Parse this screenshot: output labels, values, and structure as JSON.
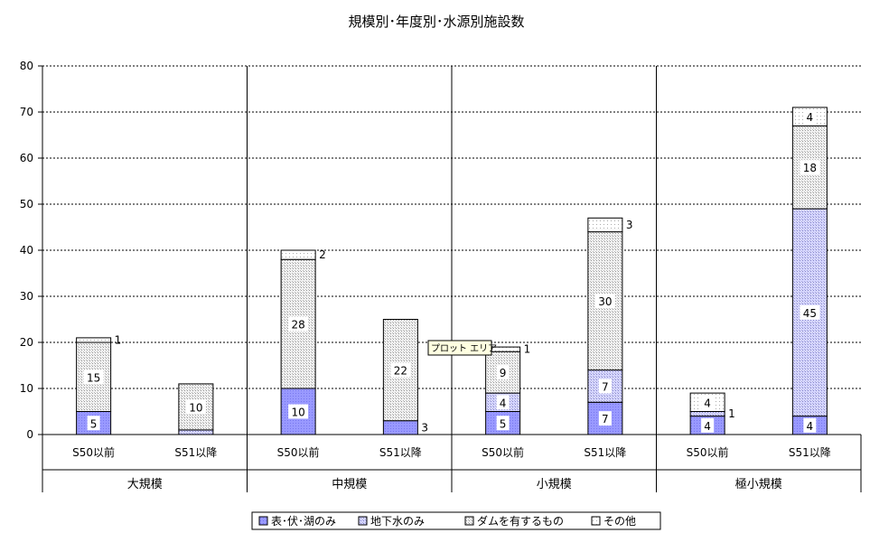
{
  "chart_data": {
    "type": "bar",
    "stacked": true,
    "title": "規模別･年度別･水源別施設数",
    "xlabel": "",
    "ylabel": "",
    "ylim": [
      0,
      80
    ],
    "yticks": [
      0,
      10,
      20,
      30,
      40,
      50,
      60,
      70,
      80
    ],
    "grid": true,
    "legend_position": "bottom",
    "groups": [
      "大規模",
      "中規模",
      "小規模",
      "極小規模"
    ],
    "categories": [
      "S50以前",
      "S51以降",
      "S50以前",
      "S51以降",
      "S50以前",
      "S51以降",
      "S50以前",
      "S51以降"
    ],
    "series": [
      {
        "name": "表･伏･湖のみ",
        "values": [
          5,
          0,
          10,
          3,
          5,
          7,
          4,
          4
        ],
        "labels": [
          "5",
          "",
          "10",
          "3",
          "5",
          "7",
          "4",
          "4"
        ]
      },
      {
        "name": "地下水のみ",
        "values": [
          0,
          1,
          0,
          0,
          4,
          7,
          1,
          45
        ],
        "labels": [
          "",
          "",
          "",
          "",
          "4",
          "7",
          "1",
          "45"
        ]
      },
      {
        "name": "ダムを有するもの",
        "values": [
          15,
          10,
          28,
          22,
          9,
          30,
          0,
          18
        ],
        "labels": [
          "15",
          "10",
          "28",
          "22",
          "9",
          "30",
          "",
          "18"
        ]
      },
      {
        "name": "その他",
        "values": [
          1,
          0,
          2,
          0,
          1,
          3,
          4,
          4
        ],
        "labels": [
          "1",
          "",
          "2",
          "",
          "1",
          "3",
          "4",
          "4"
        ]
      }
    ],
    "colors": {
      "表･伏･湖のみ": "#9999ff",
      "地下水のみ": "#ccccff",
      "ダムを有するもの": "#eeeeee",
      "その他": "#ffffff"
    },
    "tooltip": "プロット エリア"
  }
}
